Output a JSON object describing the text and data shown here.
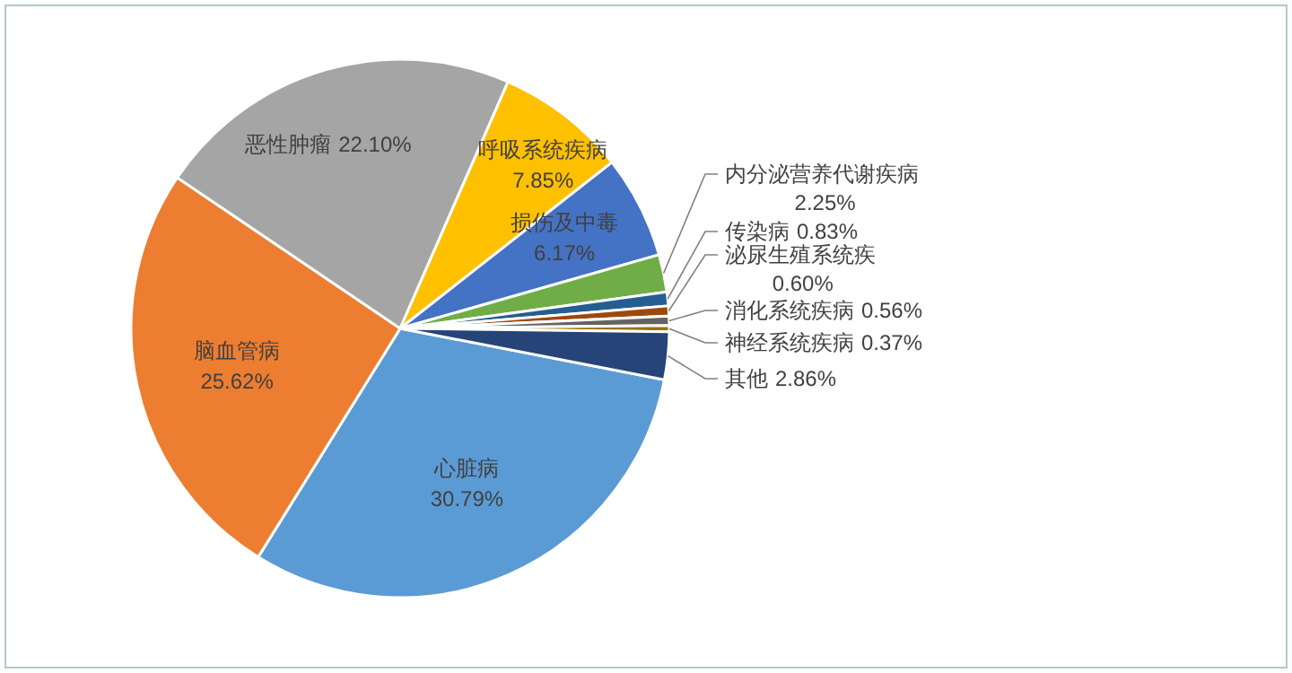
{
  "chart_data": {
    "type": "pie",
    "data_labels": true,
    "categories": [
      "心脏病",
      "脑血管病",
      "恶性肿瘤",
      "呼吸系统疾病",
      "损伤及中毒",
      "内分泌营养代谢疾病",
      "传染病",
      "泌尿生殖系统疾",
      "消化系统疾病",
      "神经系统疾病",
      "其他"
    ],
    "values": [
      30.79,
      25.62,
      22.1,
      7.85,
      6.17,
      2.25,
      0.83,
      0.6,
      0.56,
      0.37,
      2.86
    ],
    "value_labels": [
      "30.79%",
      "25.62%",
      "22.10%",
      "7.85%",
      "6.17%",
      "2.25%",
      "0.83%",
      "0.60%",
      "0.56%",
      "0.37%",
      "2.86%"
    ],
    "colors": [
      "#5b9bd5",
      "#ed7d31",
      "#a5a5a5",
      "#ffc000",
      "#4472c4",
      "#70ad47",
      "#255e91",
      "#9e480e",
      "#636363",
      "#997300",
      "#264478"
    ]
  }
}
